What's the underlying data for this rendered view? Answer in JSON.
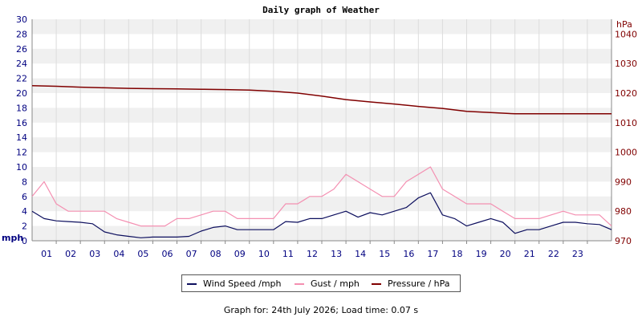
{
  "title": "Daily graph of Weather",
  "footer": "Graph for: 24th July 2026; Load time: 0.07 s",
  "legend": {
    "wind": "Wind Speed /mph",
    "gust": "Gust / mph",
    "pressure": "Pressure / hPa"
  },
  "colors": {
    "wind": "#0d0f5e",
    "gust": "#f48fb1",
    "pressure": "#800000",
    "left_axis": "#000080",
    "right_axis": "#800000",
    "grid_band": "#f0f0f0",
    "grid_line": "#dcdcdc"
  },
  "chart_data": {
    "type": "line",
    "title": "Daily graph of Weather",
    "xlabel": "",
    "ylabel": "mph",
    "y2label": "hPa",
    "x_ticks": [
      "01",
      "02",
      "03",
      "04",
      "05",
      "06",
      "07",
      "08",
      "09",
      "10",
      "11",
      "12",
      "13",
      "14",
      "15",
      "16",
      "17",
      "18",
      "19",
      "20",
      "21",
      "22",
      "23"
    ],
    "xlim": [
      0,
      24
    ],
    "ylim": [
      0,
      30
    ],
    "y_ticks": [
      0,
      2,
      4,
      6,
      8,
      10,
      12,
      14,
      16,
      18,
      20,
      22,
      24,
      26,
      28,
      30
    ],
    "y2lim": [
      970,
      1045
    ],
    "y2_ticks": [
      970,
      980,
      990,
      1000,
      1010,
      1020,
      1030,
      1040
    ],
    "grid": true,
    "legend_position": "bottom",
    "series": [
      {
        "name": "Wind Speed /mph",
        "axis": "left",
        "x": [
          0,
          0.5,
          1,
          1.5,
          2,
          2.5,
          3,
          3.5,
          4,
          4.5,
          5,
          5.5,
          6,
          6.5,
          7,
          7.5,
          8,
          8.5,
          9,
          9.5,
          10,
          10.5,
          11,
          11.5,
          12,
          12.5,
          13,
          13.5,
          14,
          14.5,
          15,
          15.5,
          16,
          16.5,
          17,
          17.5,
          18,
          18.5,
          19,
          19.5,
          20,
          20.5,
          21,
          21.5,
          22,
          22.5,
          23,
          23.5,
          24
        ],
        "values": [
          4,
          3,
          2.7,
          2.6,
          2.5,
          2.3,
          1.2,
          0.8,
          0.6,
          0.4,
          0.5,
          0.5,
          0.5,
          0.6,
          1.3,
          1.8,
          2,
          1.5,
          1.5,
          1.5,
          1.5,
          2.6,
          2.5,
          3,
          3,
          3.5,
          4,
          3.2,
          3.8,
          3.5,
          4,
          4.5,
          5.8,
          6.5,
          3.5,
          3,
          2,
          2.5,
          3,
          2.5,
          1,
          1.5,
          1.5,
          2,
          2.5,
          2.5,
          2.3,
          2.2,
          1.5
        ]
      },
      {
        "name": "Gust / mph",
        "axis": "left",
        "x": [
          0,
          0.5,
          1,
          1.5,
          2,
          2.5,
          3,
          3.5,
          4,
          4.5,
          5,
          5.5,
          6,
          6.5,
          7,
          7.5,
          8,
          8.5,
          9,
          9.5,
          10,
          10.5,
          11,
          11.5,
          12,
          12.5,
          13,
          13.5,
          14,
          14.5,
          15,
          15.5,
          16,
          16.5,
          17,
          17.5,
          18,
          18.5,
          19,
          19.5,
          20,
          20.5,
          21,
          21.5,
          22,
          22.5,
          23,
          23.5,
          24
        ],
        "values": [
          6,
          8,
          5,
          4,
          4,
          4,
          4,
          3,
          2.5,
          2,
          2,
          2,
          3,
          3,
          3.5,
          4,
          4,
          3,
          3,
          3,
          3,
          5,
          5,
          6,
          6,
          7,
          9,
          8,
          7,
          6,
          6,
          8,
          9,
          10,
          7,
          6,
          5,
          5,
          5,
          4,
          3,
          3,
          3,
          3.5,
          4,
          3.5,
          3.5,
          3.5,
          2
        ]
      },
      {
        "name": "Pressure / hPa",
        "axis": "right",
        "x": [
          0,
          1,
          2,
          3,
          4,
          5,
          6,
          7,
          8,
          9,
          10,
          11,
          12,
          13,
          14,
          15,
          16,
          17,
          18,
          19,
          20,
          21,
          22,
          23,
          24
        ],
        "values": [
          1022.5,
          1022.3,
          1022,
          1021.8,
          1021.6,
          1021.5,
          1021.4,
          1021.3,
          1021.2,
          1021,
          1020.6,
          1020,
          1019,
          1017.8,
          1017,
          1016.3,
          1015.5,
          1014.8,
          1013.8,
          1013.4,
          1013,
          1013,
          1013,
          1013,
          1013
        ]
      }
    ]
  }
}
